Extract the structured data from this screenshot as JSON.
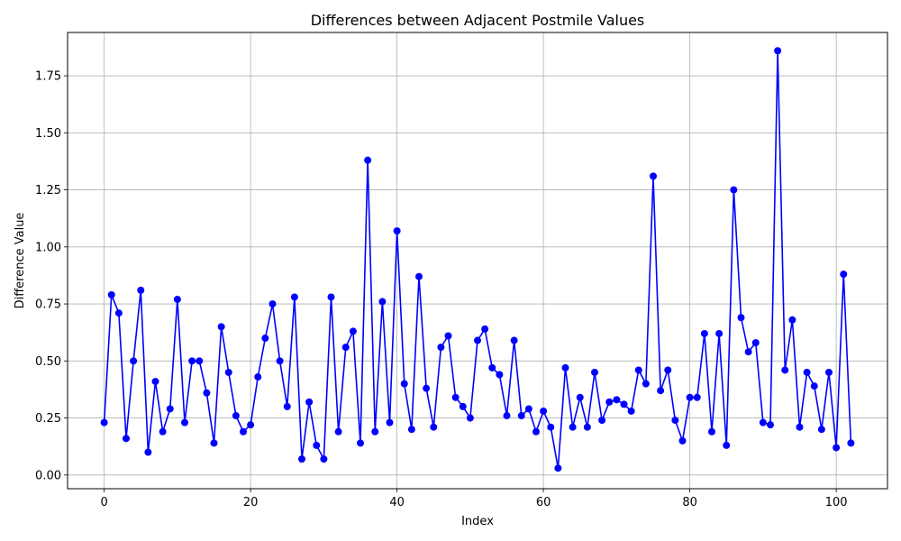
{
  "chart_data": {
    "type": "line",
    "title": "Differences between Adjacent Postmile Values",
    "xlabel": "Index",
    "ylabel": "Difference Value",
    "xlim": [
      -5,
      107
    ],
    "ylim": [
      -0.06,
      1.94
    ],
    "xticks": [
      0,
      20,
      40,
      60,
      80,
      100
    ],
    "xtick_labels": [
      "0",
      "20",
      "40",
      "60",
      "80",
      "100"
    ],
    "yticks": [
      0.0,
      0.25,
      0.5,
      0.75,
      1.0,
      1.25,
      1.5,
      1.75
    ],
    "ytick_labels": [
      "0.00",
      "0.25",
      "0.50",
      "0.75",
      "1.00",
      "1.25",
      "1.50",
      "1.75"
    ],
    "grid": true,
    "color": "#0000ff",
    "marker": "circle",
    "x": [
      0,
      1,
      2,
      3,
      4,
      5,
      6,
      7,
      8,
      9,
      10,
      11,
      12,
      13,
      14,
      15,
      16,
      17,
      18,
      19,
      20,
      21,
      22,
      23,
      24,
      25,
      26,
      27,
      28,
      29,
      30,
      31,
      32,
      33,
      34,
      35,
      36,
      37,
      38,
      39,
      40,
      41,
      42,
      43,
      44,
      45,
      46,
      47,
      48,
      49,
      50,
      51,
      52,
      53,
      54,
      55,
      56,
      57,
      58,
      59,
      60,
      61,
      62,
      63,
      64,
      65,
      66,
      67,
      68,
      69,
      70,
      71,
      72,
      73,
      74,
      75,
      76,
      77,
      78,
      79,
      80,
      81,
      82,
      83,
      84,
      85,
      86,
      87,
      88,
      89,
      90,
      91,
      92,
      93,
      94,
      95,
      96,
      97,
      98,
      99,
      100,
      101,
      102
    ],
    "y": [
      0.23,
      0.79,
      0.71,
      0.16,
      0.5,
      0.81,
      0.1,
      0.41,
      0.19,
      0.29,
      0.77,
      0.23,
      0.5,
      0.5,
      0.36,
      0.14,
      0.65,
      0.45,
      0.26,
      0.19,
      0.22,
      0.43,
      0.6,
      0.75,
      0.5,
      0.3,
      0.78,
      0.07,
      0.32,
      0.13,
      0.07,
      0.78,
      0.19,
      0.56,
      0.63,
      0.14,
      1.38,
      0.19,
      0.76,
      0.23,
      1.07,
      0.4,
      0.2,
      0.87,
      0.38,
      0.21,
      0.56,
      0.61,
      0.34,
      0.3,
      0.25,
      0.59,
      0.64,
      0.47,
      0.44,
      0.26,
      0.59,
      0.26,
      0.29,
      0.19,
      0.28,
      0.21,
      0.03,
      0.47,
      0.21,
      0.34,
      0.21,
      0.45,
      0.24,
      0.32,
      0.33,
      0.31,
      0.28,
      0.46,
      0.4,
      1.31,
      0.37,
      0.46,
      0.24,
      0.15,
      0.34,
      0.34,
      0.62,
      0.19,
      0.62,
      0.13,
      1.25,
      0.69,
      0.54,
      0.58,
      0.23,
      0.22,
      1.86,
      0.46,
      0.68,
      0.21,
      0.45,
      0.39,
      0.2,
      0.45,
      0.12,
      0.88,
      0.14
    ]
  }
}
